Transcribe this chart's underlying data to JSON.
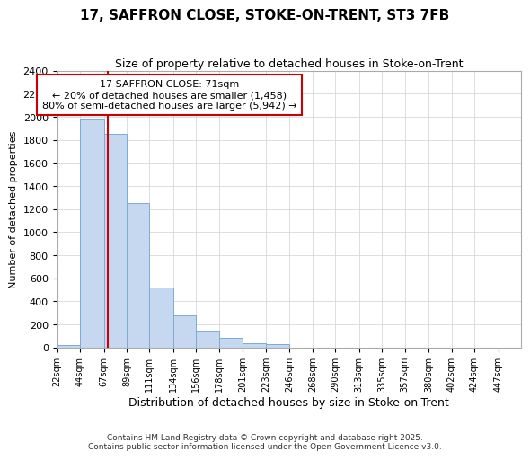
{
  "title": "17, SAFFRON CLOSE, STOKE-ON-TRENT, ST3 7FB",
  "subtitle": "Size of property relative to detached houses in Stoke-on-Trent",
  "xlabel": "Distribution of detached houses by size in Stoke-on-Trent",
  "ylabel": "Number of detached properties",
  "annotation_title": "17 SAFFRON CLOSE: 71sqm",
  "annotation_line1": "← 20% of detached houses are smaller (1,458)",
  "annotation_line2": "80% of semi-detached houses are larger (5,942) →",
  "property_size": 71,
  "bin_edges": [
    22,
    44,
    67,
    89,
    111,
    134,
    156,
    178,
    201,
    223,
    246,
    268,
    290,
    313,
    335,
    357,
    380,
    402,
    424,
    447,
    469
  ],
  "bin_counts": [
    25,
    1975,
    1850,
    1250,
    520,
    280,
    150,
    85,
    40,
    30,
    0,
    0,
    0,
    0,
    0,
    0,
    0,
    0,
    0,
    0
  ],
  "bar_color": "#c5d8f0",
  "bar_edge_color": "#7aaad4",
  "vline_color": "#cc0000",
  "box_edge_color": "#cc0000",
  "box_face_color": "#ffffff",
  "background_color": "#ffffff",
  "grid_color": "#d8d8d8",
  "ylim": [
    0,
    2400
  ],
  "yticks": [
    0,
    200,
    400,
    600,
    800,
    1000,
    1200,
    1400,
    1600,
    1800,
    2000,
    2200,
    2400
  ],
  "footer_line1": "Contains HM Land Registry data © Crown copyright and database right 2025.",
  "footer_line2": "Contains public sector information licensed under the Open Government Licence v3.0."
}
